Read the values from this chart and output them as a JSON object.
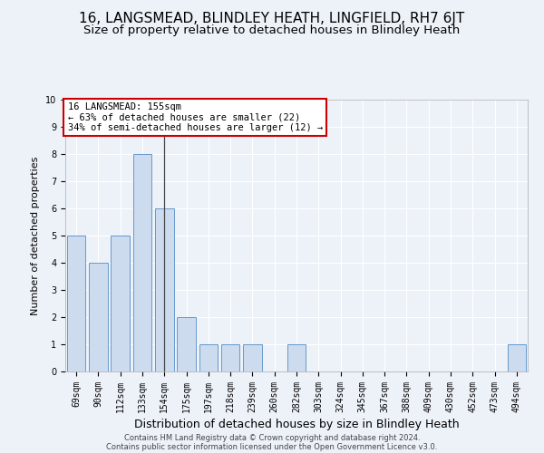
{
  "title": "16, LANGSMEAD, BLINDLEY HEATH, LINGFIELD, RH7 6JT",
  "subtitle": "Size of property relative to detached houses in Blindley Heath",
  "xlabel": "Distribution of detached houses by size in Blindley Heath",
  "ylabel": "Number of detached properties",
  "categories": [
    "69sqm",
    "90sqm",
    "112sqm",
    "133sqm",
    "154sqm",
    "175sqm",
    "197sqm",
    "218sqm",
    "239sqm",
    "260sqm",
    "282sqm",
    "303sqm",
    "324sqm",
    "345sqm",
    "367sqm",
    "388sqm",
    "409sqm",
    "430sqm",
    "452sqm",
    "473sqm",
    "494sqm"
  ],
  "values": [
    5,
    4,
    5,
    8,
    6,
    2,
    1,
    1,
    1,
    0,
    1,
    0,
    0,
    0,
    0,
    0,
    0,
    0,
    0,
    0,
    1
  ],
  "bar_color": "#ccdcee",
  "bar_edge_color": "#6699cc",
  "marker_index": 4,
  "annotation_line1": "16 LANGSMEAD: 155sqm",
  "annotation_line2": "← 63% of detached houses are smaller (22)",
  "annotation_line3": "34% of semi-detached houses are larger (12) →",
  "annotation_box_color": "#ffffff",
  "annotation_box_edge": "#cc0000",
  "ylim": [
    0,
    10
  ],
  "yticks": [
    0,
    1,
    2,
    3,
    4,
    5,
    6,
    7,
    8,
    9,
    10
  ],
  "footer1": "Contains HM Land Registry data © Crown copyright and database right 2024.",
  "footer2": "Contains public sector information licensed under the Open Government Licence v3.0.",
  "bg_color": "#edf2f9",
  "grid_color": "#ffffff",
  "title_fontsize": 11,
  "subtitle_fontsize": 9.5,
  "ylabel_fontsize": 8,
  "xlabel_fontsize": 9,
  "tick_fontsize": 7,
  "footer_fontsize": 6,
  "annot_fontsize": 7.5
}
